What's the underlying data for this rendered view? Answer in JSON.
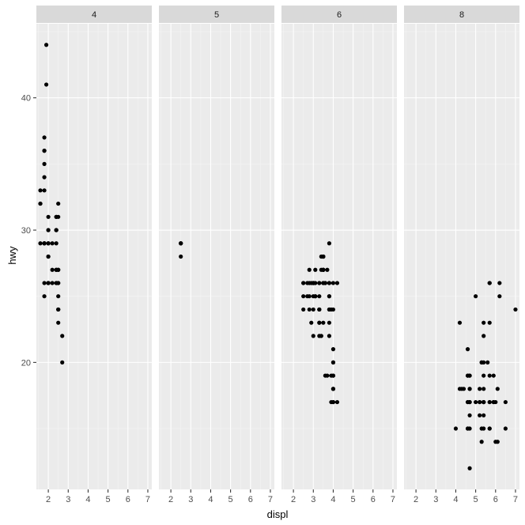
{
  "chart_data": {
    "type": "scatter",
    "layout": "facet_wrap",
    "facet_variable": "cyl",
    "xlabel": "displ",
    "ylabel": "hwy",
    "xlim": [
      1.4,
      7.2
    ],
    "ylim": [
      10.4,
      45.6
    ],
    "x_ticks": [
      2,
      3,
      4,
      5,
      6,
      7
    ],
    "y_ticks": [
      20,
      30,
      40
    ],
    "grid": true,
    "colors": {
      "panel_bg": "#ebebeb",
      "strip_bg": "#d9d9d9",
      "grid_major": "#ffffff",
      "point": "#000000"
    },
    "panels": [
      {
        "label": "4",
        "points": [
          [
            1.8,
            29
          ],
          [
            1.8,
            29
          ],
          [
            2.0,
            31
          ],
          [
            2.0,
            30
          ],
          [
            1.8,
            26
          ],
          [
            1.8,
            25
          ],
          [
            2.0,
            28
          ],
          [
            2.0,
            29
          ],
          [
            2.4,
            27
          ],
          [
            2.4,
            30
          ],
          [
            2.2,
            26
          ],
          [
            2.2,
            29
          ],
          [
            2.4,
            26
          ],
          [
            2.4,
            29
          ],
          [
            2.0,
            26
          ],
          [
            2.0,
            26
          ],
          [
            2.5,
            24
          ],
          [
            2.5,
            24
          ],
          [
            2.7,
            22
          ],
          [
            2.7,
            20
          ],
          [
            1.8,
            33
          ],
          [
            1.6,
            33
          ],
          [
            1.6,
            32
          ],
          [
            1.6,
            29
          ],
          [
            1.6,
            32
          ],
          [
            1.8,
            34
          ],
          [
            1.8,
            36
          ],
          [
            1.8,
            36
          ],
          [
            1.9,
            44
          ],
          [
            1.9,
            41
          ],
          [
            2.0,
            29
          ],
          [
            2.0,
            26
          ],
          [
            2.0,
            28
          ],
          [
            2.4,
            26
          ],
          [
            2.4,
            30
          ],
          [
            2.4,
            31
          ],
          [
            2.5,
            32
          ],
          [
            2.5,
            27
          ],
          [
            2.5,
            26
          ],
          [
            2.5,
            25
          ],
          [
            2.5,
            27
          ],
          [
            1.8,
            35
          ],
          [
            1.8,
            37
          ],
          [
            2.2,
            27
          ],
          [
            2.4,
            27
          ],
          [
            2.4,
            31
          ],
          [
            2.4,
            30
          ],
          [
            2.5,
            31
          ],
          [
            2.5,
            23
          ],
          [
            1.8,
            29
          ],
          [
            2.0,
            30
          ],
          [
            2.0,
            26
          ],
          [
            2.5,
            24
          ],
          [
            2.5,
            26
          ]
        ]
      },
      {
        "label": "5",
        "points": [
          [
            2.5,
            29
          ],
          [
            2.5,
            29
          ],
          [
            2.5,
            28
          ],
          [
            2.5,
            29
          ]
        ]
      },
      {
        "label": "6",
        "points": [
          [
            2.8,
            26
          ],
          [
            3.1,
            27
          ],
          [
            2.8,
            25
          ],
          [
            3.1,
            25
          ],
          [
            3.0,
            26
          ],
          [
            3.8,
            26
          ],
          [
            3.8,
            25
          ],
          [
            3.8,
            24
          ],
          [
            4.0,
            26
          ],
          [
            3.3,
            24
          ],
          [
            3.3,
            24
          ],
          [
            3.3,
            22
          ],
          [
            3.8,
            22
          ],
          [
            3.8,
            24
          ],
          [
            4.0,
            24
          ],
          [
            3.7,
            19
          ],
          [
            3.9,
            17
          ],
          [
            4.0,
            17
          ],
          [
            4.0,
            19
          ],
          [
            4.0,
            20
          ],
          [
            4.0,
            17
          ],
          [
            4.0,
            19
          ],
          [
            4.2,
            17
          ],
          [
            2.5,
            26
          ],
          [
            2.5,
            25
          ],
          [
            3.3,
            26
          ],
          [
            3.3,
            26
          ],
          [
            3.5,
            27
          ],
          [
            3.8,
            29
          ],
          [
            4.2,
            26
          ],
          [
            3.5,
            27
          ],
          [
            4.0,
            18
          ],
          [
            4.0,
            18
          ],
          [
            3.6,
            26
          ],
          [
            3.5,
            28
          ],
          [
            3.3,
            24
          ],
          [
            3.3,
            25
          ],
          [
            3.0,
            26
          ],
          [
            2.7,
            26
          ],
          [
            3.4,
            27
          ],
          [
            3.8,
            26
          ],
          [
            3.3,
            23
          ],
          [
            3.5,
            26
          ],
          [
            2.8,
            27
          ],
          [
            3.1,
            25
          ],
          [
            3.0,
            22
          ],
          [
            4.0,
            18
          ],
          [
            3.5,
            26
          ],
          [
            3.6,
            19
          ],
          [
            2.5,
            24
          ],
          [
            2.9,
            26
          ],
          [
            3.0,
            25
          ],
          [
            3.0,
            26
          ],
          [
            3.7,
            27
          ],
          [
            3.4,
            28
          ],
          [
            3.9,
            24
          ],
          [
            3.8,
            25
          ],
          [
            2.9,
            23
          ],
          [
            4.0,
            21
          ],
          [
            3.5,
            28
          ],
          [
            2.5,
            26
          ],
          [
            3.1,
            26
          ],
          [
            3.5,
            27
          ],
          [
            3.5,
            28
          ],
          [
            2.8,
            24
          ],
          [
            2.7,
            25
          ],
          [
            3.0,
            26
          ],
          [
            3.0,
            24
          ],
          [
            3.5,
            23
          ],
          [
            3.8,
            23
          ],
          [
            4.0,
            20
          ],
          [
            3.4,
            22
          ],
          [
            3.6,
            26
          ],
          [
            3.3,
            23
          ],
          [
            3.9,
            19
          ]
        ]
      },
      {
        "label": "8",
        "points": [
          [
            5.7,
            26
          ],
          [
            5.7,
            23
          ],
          [
            6.2,
            26
          ],
          [
            6.2,
            25
          ],
          [
            7.0,
            24
          ],
          [
            5.3,
            20
          ],
          [
            5.3,
            15
          ],
          [
            5.3,
            20
          ],
          [
            5.7,
            17
          ],
          [
            6.0,
            17
          ],
          [
            5.7,
            26
          ],
          [
            6.5,
            17
          ],
          [
            5.2,
            16
          ],
          [
            5.2,
            18
          ],
          [
            5.7,
            17
          ],
          [
            5.9,
            19
          ],
          [
            4.7,
            19
          ],
          [
            4.7,
            12
          ],
          [
            4.7,
            17
          ],
          [
            5.2,
            17
          ],
          [
            5.7,
            15
          ],
          [
            5.9,
            17
          ],
          [
            4.6,
            17
          ],
          [
            5.4,
            16
          ],
          [
            5.4,
            17
          ],
          [
            4.0,
            15
          ],
          [
            4.6,
            17
          ],
          [
            5.0,
            17
          ],
          [
            4.6,
            15
          ],
          [
            5.4,
            17
          ],
          [
            4.2,
            23
          ],
          [
            4.4,
            18
          ],
          [
            4.6,
            19
          ],
          [
            5.4,
            17
          ],
          [
            5.4,
            15
          ],
          [
            4.3,
            18
          ],
          [
            4.7,
            17
          ],
          [
            5.7,
            19
          ],
          [
            6.1,
            18
          ],
          [
            4.7,
            18
          ],
          [
            4.7,
            19
          ],
          [
            5.7,
            15
          ],
          [
            6.1,
            14
          ],
          [
            5.4,
            18
          ],
          [
            4.7,
            18
          ],
          [
            5.4,
            23
          ],
          [
            5.4,
            22
          ],
          [
            5.3,
            14
          ],
          [
            6.5,
            15
          ],
          [
            4.6,
            19
          ],
          [
            5.4,
            17
          ],
          [
            4.2,
            18
          ],
          [
            4.6,
            21
          ],
          [
            4.7,
            15
          ],
          [
            4.7,
            16
          ],
          [
            5.2,
            17
          ],
          [
            5.9,
            17
          ],
          [
            4.7,
            17
          ],
          [
            5.6,
            20
          ],
          [
            5.4,
            19
          ],
          [
            6.0,
            14
          ],
          [
            5.0,
            25
          ],
          [
            4.6,
            15
          ],
          [
            5.4,
            20
          ]
        ]
      }
    ]
  }
}
